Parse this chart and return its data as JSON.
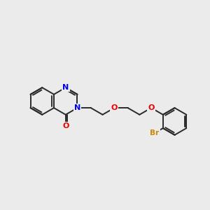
{
  "background_color": "#ebebeb",
  "bond_color": "#2a2a2a",
  "nitrogen_color": "#0000ee",
  "oxygen_color": "#ee0000",
  "bromine_color": "#cc8800",
  "bond_width": 1.4,
  "figsize": [
    3.0,
    3.0
  ],
  "dpi": 100,
  "BL": 0.42,
  "xlim": [
    -2.8,
    3.6
  ],
  "ylim": [
    -2.0,
    2.0
  ]
}
